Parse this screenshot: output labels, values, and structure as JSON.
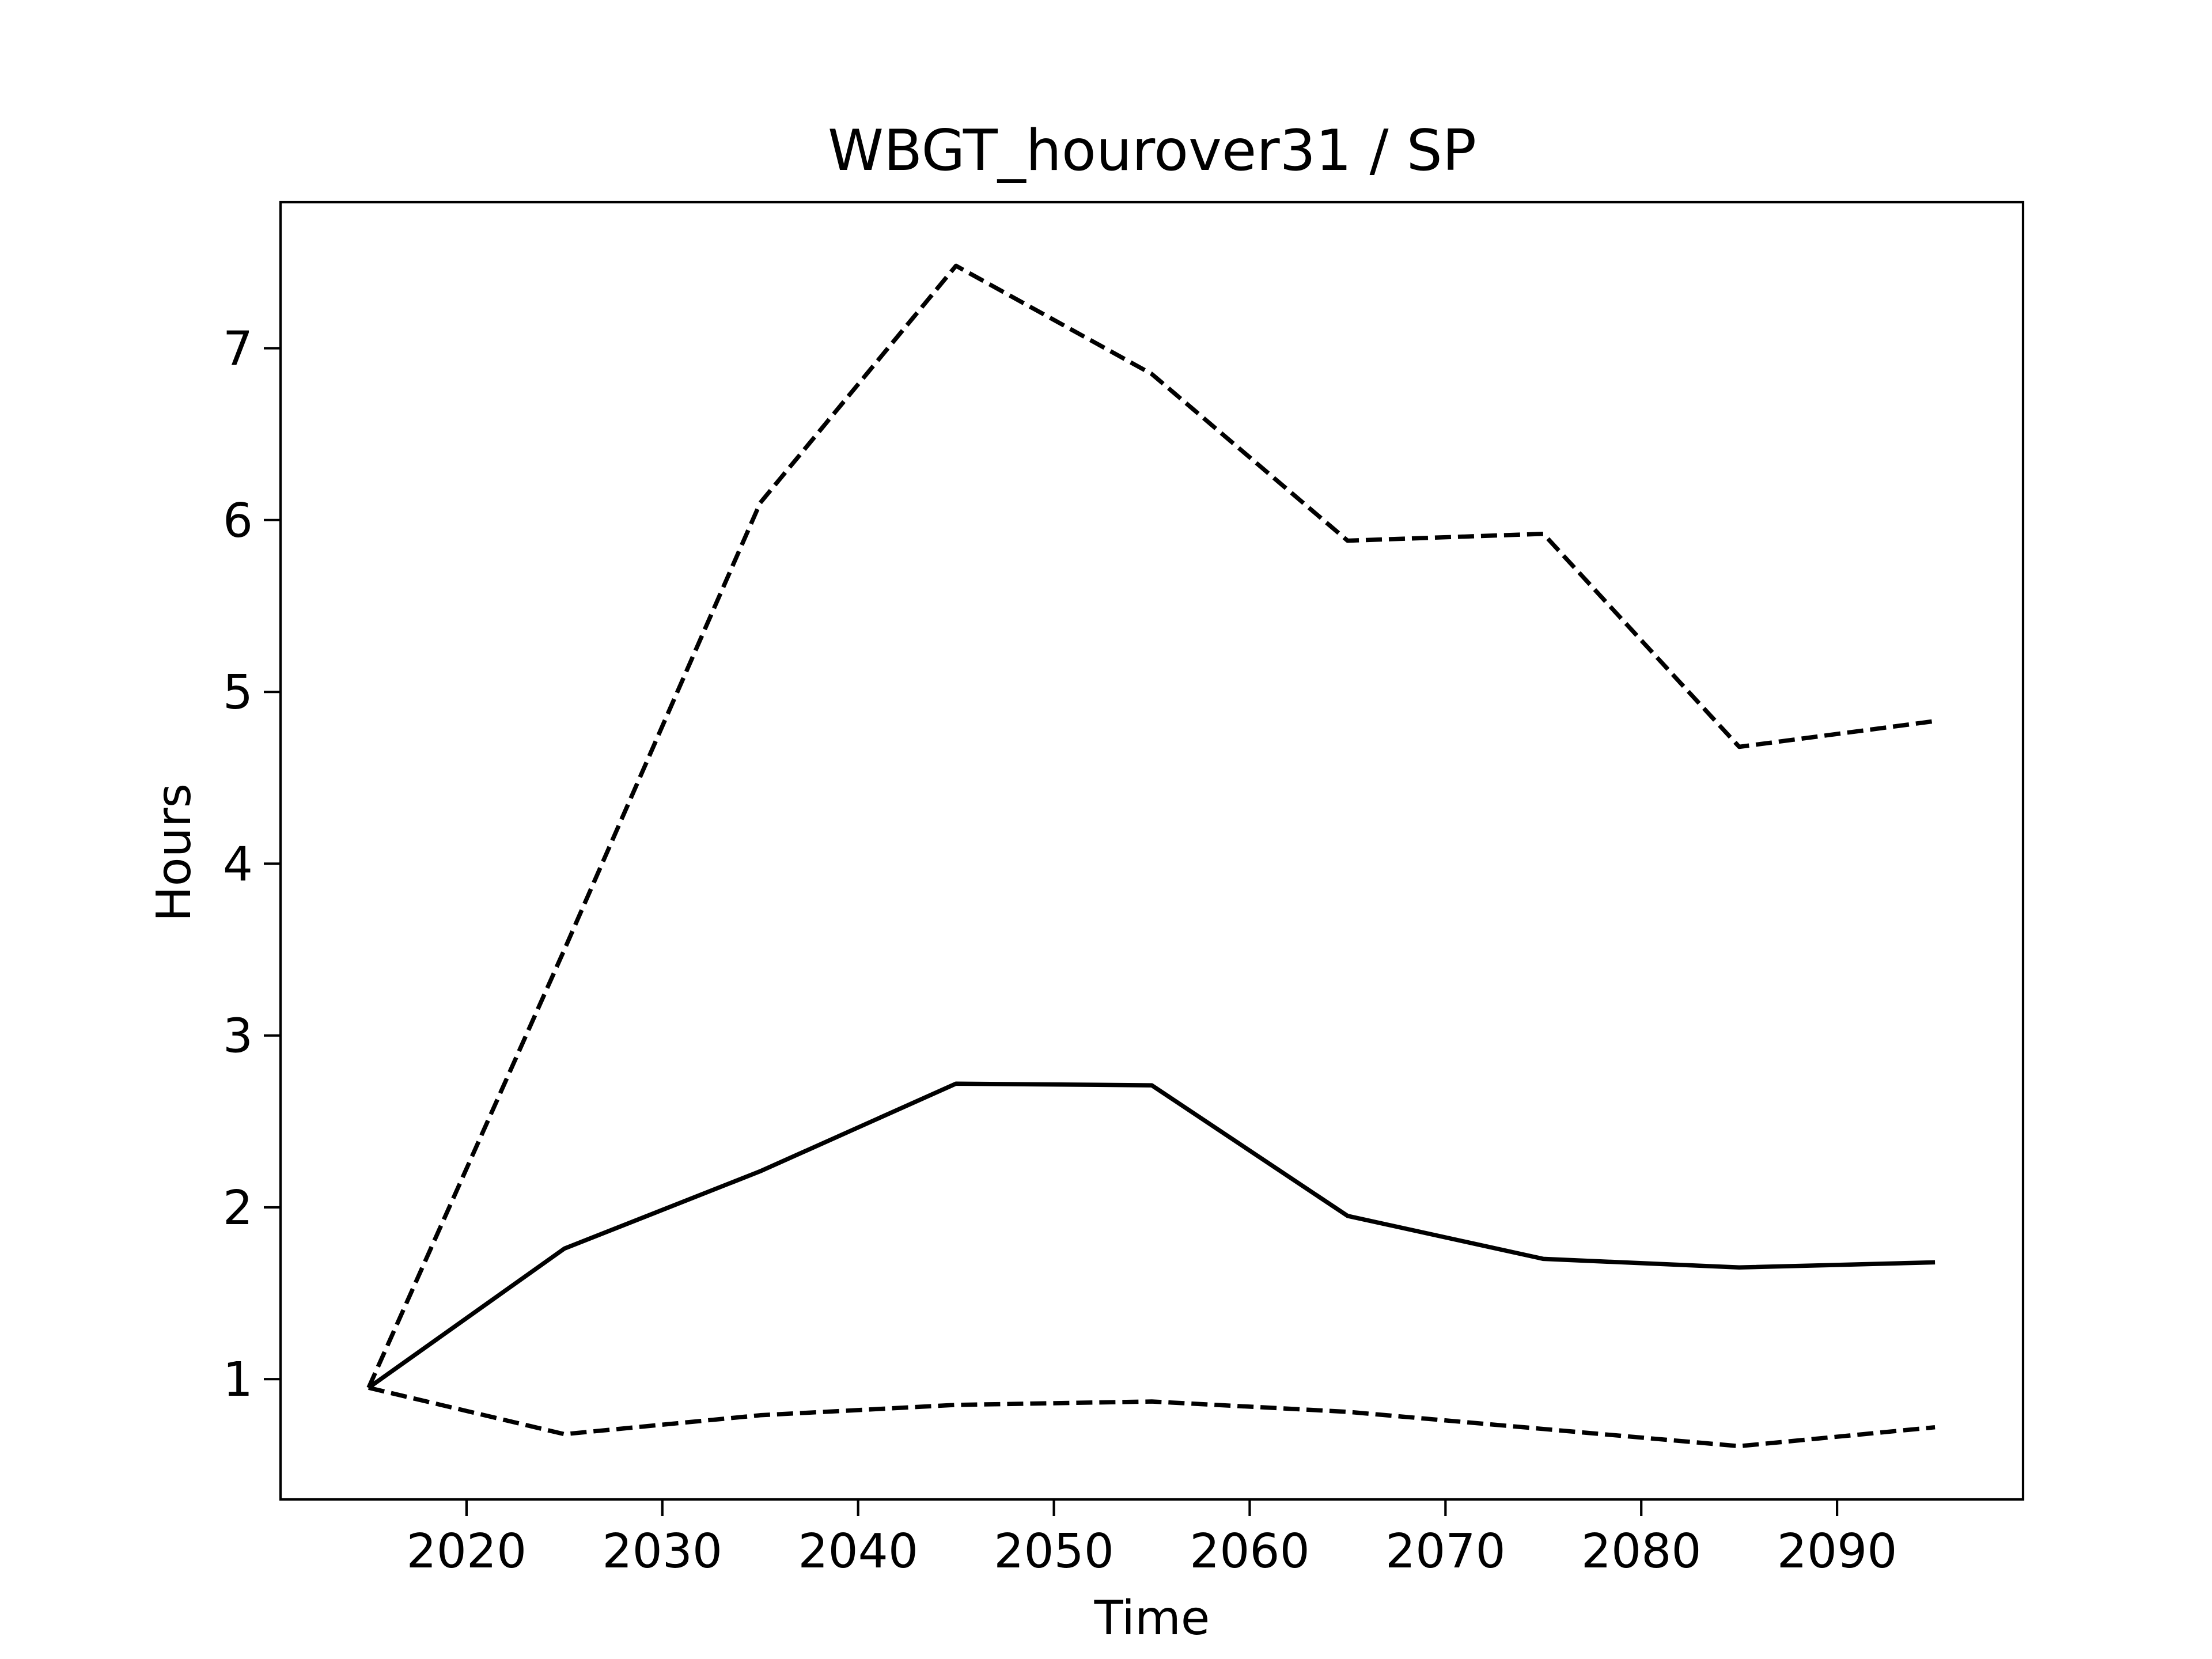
{
  "chart_data": {
    "type": "line",
    "title": "WBGT_hourover31 / SP",
    "xlabel": "Time",
    "ylabel": "Hours",
    "xlim": [
      2010.5,
      2099.5
    ],
    "ylim": [
      0.3,
      7.85
    ],
    "xticks": [
      2020,
      2030,
      2040,
      2050,
      2060,
      2070,
      2080,
      2090
    ],
    "yticks": [
      1,
      2,
      3,
      4,
      5,
      6,
      7
    ],
    "grid": false,
    "legend": "none",
    "x": [
      2015,
      2025,
      2035,
      2045,
      2055,
      2065,
      2075,
      2085,
      2095
    ],
    "series": [
      {
        "style": "dashed",
        "color": "#000000",
        "values": [
          0.95,
          3.5,
          6.1,
          7.48,
          6.85,
          5.88,
          5.92,
          4.68,
          4.83
        ]
      },
      {
        "style": "solid",
        "color": "#000000",
        "values": [
          0.95,
          1.76,
          2.21,
          2.72,
          2.71,
          1.95,
          1.7,
          1.65,
          1.68
        ]
      },
      {
        "style": "dashed",
        "color": "#000000",
        "values": [
          0.95,
          0.68,
          0.79,
          0.85,
          0.87,
          0.81,
          0.71,
          0.61,
          0.72
        ]
      }
    ]
  }
}
